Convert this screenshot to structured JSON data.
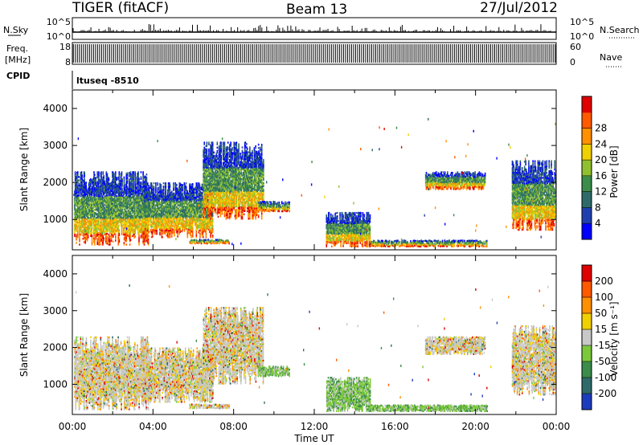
{
  "header": {
    "radar": "TIGER (fitACF)",
    "beam": "Beam 13",
    "date": "27/Jul/2012"
  },
  "aux_panels": {
    "nsky_label": "N.Sky",
    "nsky_ticks": [
      "10^5",
      "10^0"
    ],
    "nsearch_label": "N.Search",
    "nsearch_ticks": [
      "10^5",
      "10^0"
    ],
    "freq_label_1": "Freq.",
    "freq_label_2": "[MHz]",
    "freq_ticks": [
      "18",
      "8"
    ],
    "nave_label": "Nave",
    "nave_ticks": [
      "60",
      "0"
    ],
    "cpid_label": "CPID",
    "cpid_value": "ltuseq -8510"
  },
  "chart_data": [
    {
      "type": "heatmap",
      "name": "power-panel",
      "ylabel": "Slant Range [km]",
      "ylim": [
        180,
        4500
      ],
      "yticks": [
        1000,
        2000,
        3000,
        4000
      ],
      "xlim": [
        0,
        24
      ],
      "colorbar_label": "Power [dB]",
      "colorbar_ticks": [
        4,
        8,
        12,
        16,
        20,
        24,
        28
      ],
      "colorbar_colors": [
        "#0000ff",
        "#1f3fb0",
        "#2f6a6a",
        "#3c8c4c",
        "#90c030",
        "#f0d000",
        "#ff9000",
        "#ff5a00",
        "#e00000"
      ],
      "regions": [
        {
          "t": [
            0.1,
            3.8
          ],
          "r": [
            300,
            2300
          ],
          "kind": "pow"
        },
        {
          "t": [
            3.5,
            7.0
          ],
          "r": [
            500,
            2000
          ],
          "kind": "pow"
        },
        {
          "t": [
            6.5,
            9.5
          ],
          "r": [
            1000,
            3100
          ],
          "kind": "pow"
        },
        {
          "t": [
            9.2,
            10.8
          ],
          "r": [
            1200,
            1500
          ],
          "kind": "pow"
        },
        {
          "t": [
            5.8,
            7.8
          ],
          "r": [
            330,
            470
          ],
          "kind": "pow"
        },
        {
          "t": [
            12.6,
            14.8
          ],
          "r": [
            250,
            1200
          ],
          "kind": "pow"
        },
        {
          "t": [
            14.8,
            20.6
          ],
          "r": [
            250,
            450
          ],
          "kind": "pow"
        },
        {
          "t": [
            17.5,
            20.5
          ],
          "r": [
            1800,
            2300
          ],
          "kind": "pow"
        },
        {
          "t": [
            21.8,
            24.0
          ],
          "r": [
            700,
            2600
          ],
          "kind": "pow"
        }
      ]
    },
    {
      "type": "heatmap",
      "name": "velocity-panel",
      "ylabel": "Slant Range [km]",
      "ylim": [
        180,
        4500
      ],
      "yticks": [
        1000,
        2000,
        3000,
        4000
      ],
      "xlim": [
        0,
        24
      ],
      "xticks": [
        "00:00",
        "04:00",
        "08:00",
        "12:00",
        "16:00",
        "20:00",
        "00:00"
      ],
      "xlabel": "Time UT",
      "colorbar_label": "Velocity [m s⁻¹]",
      "colorbar_ticks": [
        200,
        100,
        50,
        15,
        -15,
        -50,
        -100,
        -200
      ],
      "colorbar_colors": [
        "#1c3cbe",
        "#2f6a6a",
        "#3c8c4c",
        "#7cc83c",
        "#c8c8c8",
        "#f0d000",
        "#ff9000",
        "#ff5a00",
        "#e00000"
      ],
      "regions": [
        {
          "t": [
            0.1,
            3.8
          ],
          "r": [
            300,
            2300
          ],
          "kind": "vel"
        },
        {
          "t": [
            3.5,
            7.0
          ],
          "r": [
            500,
            2000
          ],
          "kind": "vel"
        },
        {
          "t": [
            6.5,
            9.5
          ],
          "r": [
            1000,
            3100
          ],
          "kind": "vel"
        },
        {
          "t": [
            9.2,
            10.8
          ],
          "r": [
            1200,
            1500
          ],
          "kind": "velg"
        },
        {
          "t": [
            5.8,
            7.8
          ],
          "r": [
            330,
            470
          ],
          "kind": "vel"
        },
        {
          "t": [
            12.6,
            14.8
          ],
          "r": [
            250,
            1200
          ],
          "kind": "velg"
        },
        {
          "t": [
            14.8,
            20.6
          ],
          "r": [
            250,
            450
          ],
          "kind": "velg"
        },
        {
          "t": [
            17.5,
            20.5
          ],
          "r": [
            1800,
            2300
          ],
          "kind": "vel"
        },
        {
          "t": [
            21.8,
            24.0
          ],
          "r": [
            700,
            2600
          ],
          "kind": "vel"
        }
      ]
    }
  ]
}
